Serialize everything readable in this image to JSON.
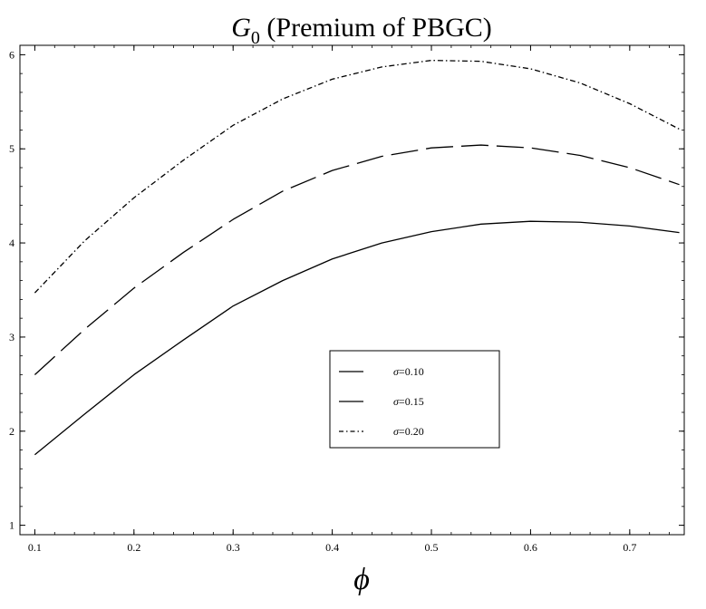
{
  "chart_data": {
    "type": "line",
    "title": {
      "main": "G",
      "sub": "0",
      "rest": " (Premium of PBGC)"
    },
    "xlabel": "ϕ",
    "ylabel": "",
    "xlim": [
      0.085,
      0.755
    ],
    "ylim": [
      0.9,
      6.1
    ],
    "x_ticks": [
      0.1,
      0.2,
      0.3,
      0.4,
      0.5,
      0.6,
      0.7
    ],
    "x_tick_labels": [
      "0.1",
      "0.2",
      "0.3",
      "0.4",
      "0.5",
      "0.6",
      "0.7"
    ],
    "y_ticks": [
      1,
      2,
      3,
      4,
      5,
      6
    ],
    "y_tick_labels": [
      "1",
      "2",
      "3",
      "4",
      "5",
      "6"
    ],
    "grid": false,
    "legend_position": "center-right",
    "x": [
      0.1,
      0.15,
      0.2,
      0.25,
      0.3,
      0.35,
      0.4,
      0.45,
      0.5,
      0.55,
      0.6,
      0.65,
      0.7,
      0.75
    ],
    "series": [
      {
        "name": "σ=0.10",
        "symbol": "σ",
        "value_text": "=0.10",
        "style": "solid",
        "values": [
          1.75,
          2.18,
          2.6,
          2.97,
          3.33,
          3.6,
          3.83,
          4.0,
          4.12,
          4.2,
          4.23,
          4.22,
          4.18,
          4.11
        ]
      },
      {
        "name": "σ=0.15",
        "symbol": "σ",
        "value_text": "=0.15",
        "style": "long-dash",
        "values": [
          2.6,
          3.08,
          3.52,
          3.9,
          4.25,
          4.55,
          4.77,
          4.92,
          5.01,
          5.04,
          5.01,
          4.93,
          4.8,
          4.62
        ]
      },
      {
        "name": "σ=0.20",
        "symbol": "σ",
        "value_text": "=0.20",
        "style": "dash-dot",
        "values": [
          3.47,
          4.02,
          4.48,
          4.88,
          5.25,
          5.53,
          5.74,
          5.87,
          5.94,
          5.93,
          5.85,
          5.7,
          5.48,
          5.21
        ]
      }
    ]
  }
}
